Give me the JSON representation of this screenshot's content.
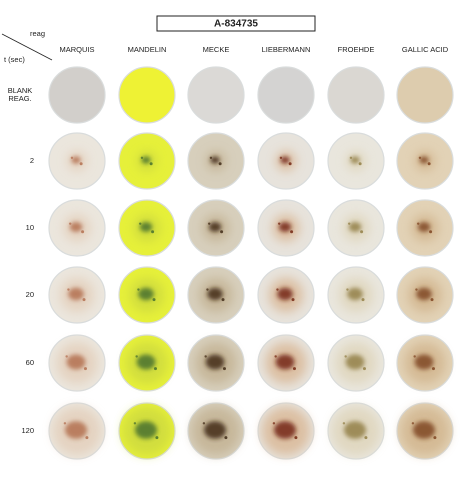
{
  "header": {
    "title": "A-834735",
    "column_axis": "reag",
    "row_axis": "t (sec)"
  },
  "columns": [
    "MARQUIS",
    "MANDELIN",
    "MECKE",
    "LIEBERMANN",
    "FROEHDE",
    "GALLIC ACID"
  ],
  "rows": [
    {
      "label": [
        "BLANK",
        "REAG."
      ]
    },
    {
      "label": 2
    },
    {
      "label": 10
    },
    {
      "label": 20
    },
    {
      "label": 60
    },
    {
      "label": 120
    }
  ]
}
